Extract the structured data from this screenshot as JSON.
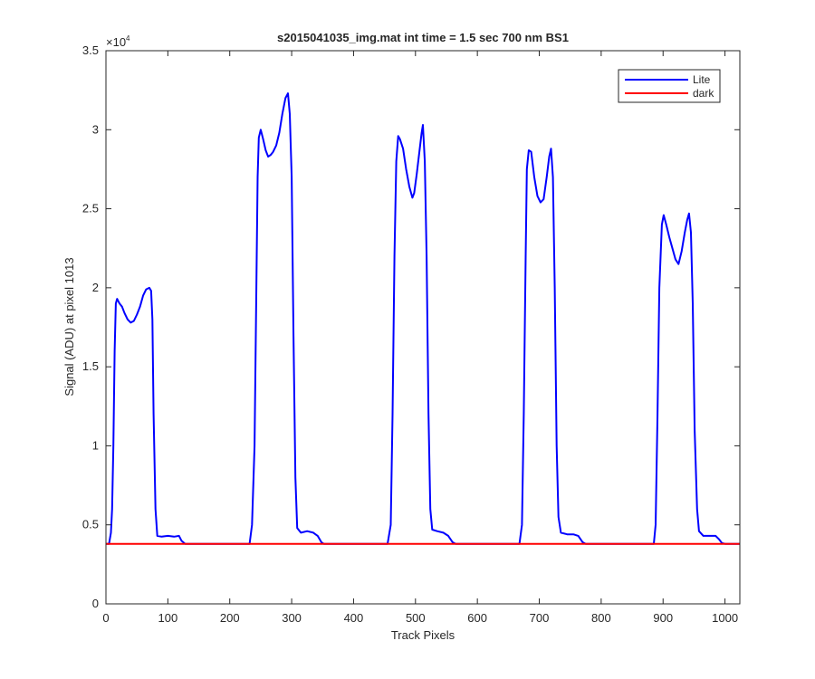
{
  "colors": {
    "lite": "#0000ff",
    "dark": "#ff0000",
    "axes": "#262626",
    "background": "#ffffff"
  },
  "chart_data": {
    "type": "line",
    "title": "s2015041035_img.mat int time = 1.5 sec  700 nm BS1",
    "xlabel": "Track Pixels",
    "ylabel": "Signal (ADU) at pixel 1013",
    "xlim": [
      0,
      1024
    ],
    "ylim": [
      0,
      35000
    ],
    "y_exponent_label": "×10",
    "y_exponent_power": "4",
    "xticks": [
      0,
      100,
      200,
      300,
      400,
      500,
      600,
      700,
      800,
      900,
      1000
    ],
    "xtick_labels": [
      "0",
      "100",
      "200",
      "300",
      "400",
      "500",
      "600",
      "700",
      "800",
      "900",
      "1000"
    ],
    "yticks": [
      0,
      5000,
      10000,
      15000,
      20000,
      25000,
      30000,
      35000
    ],
    "ytick_labels": [
      "0",
      "0.5",
      "1",
      "1.5",
      "2",
      "2.5",
      "3",
      "3.5"
    ],
    "grid": false,
    "legend_position": "top-right",
    "series": [
      {
        "name": "Lite",
        "color": "#0000ff",
        "points": [
          [
            0,
            3800
          ],
          [
            5,
            3800
          ],
          [
            8,
            4500
          ],
          [
            10,
            6000
          ],
          [
            12,
            10000
          ],
          [
            14,
            16000
          ],
          [
            16,
            19000
          ],
          [
            18,
            19300
          ],
          [
            22,
            19000
          ],
          [
            26,
            18800
          ],
          [
            30,
            18400
          ],
          [
            35,
            18000
          ],
          [
            40,
            17800
          ],
          [
            45,
            17900
          ],
          [
            50,
            18300
          ],
          [
            55,
            18800
          ],
          [
            60,
            19500
          ],
          [
            65,
            19900
          ],
          [
            70,
            20000
          ],
          [
            73,
            19800
          ],
          [
            75,
            18000
          ],
          [
            77,
            12000
          ],
          [
            80,
            6000
          ],
          [
            83,
            4300
          ],
          [
            90,
            4250
          ],
          [
            100,
            4300
          ],
          [
            110,
            4250
          ],
          [
            118,
            4300
          ],
          [
            122,
            4000
          ],
          [
            128,
            3800
          ],
          [
            232,
            3800
          ],
          [
            236,
            5000
          ],
          [
            240,
            10000
          ],
          [
            243,
            20000
          ],
          [
            245,
            27000
          ],
          [
            247,
            29500
          ],
          [
            250,
            30000
          ],
          [
            254,
            29400
          ],
          [
            258,
            28700
          ],
          [
            262,
            28300
          ],
          [
            266,
            28400
          ],
          [
            270,
            28600
          ],
          [
            275,
            29000
          ],
          [
            280,
            29800
          ],
          [
            285,
            31000
          ],
          [
            290,
            32000
          ],
          [
            294,
            32300
          ],
          [
            297,
            31000
          ],
          [
            300,
            27000
          ],
          [
            303,
            17000
          ],
          [
            306,
            8000
          ],
          [
            309,
            4800
          ],
          [
            315,
            4500
          ],
          [
            325,
            4600
          ],
          [
            335,
            4500
          ],
          [
            342,
            4300
          ],
          [
            348,
            3900
          ],
          [
            352,
            3800
          ],
          [
            455,
            3800
          ],
          [
            460,
            5000
          ],
          [
            463,
            12000
          ],
          [
            466,
            22000
          ],
          [
            469,
            28000
          ],
          [
            472,
            29600
          ],
          [
            475,
            29400
          ],
          [
            480,
            28800
          ],
          [
            485,
            27500
          ],
          [
            490,
            26400
          ],
          [
            495,
            25700
          ],
          [
            498,
            26000
          ],
          [
            502,
            27200
          ],
          [
            506,
            28500
          ],
          [
            510,
            29800
          ],
          [
            512,
            30300
          ],
          [
            515,
            28000
          ],
          [
            518,
            22000
          ],
          [
            521,
            12000
          ],
          [
            524,
            6000
          ],
          [
            527,
            4700
          ],
          [
            535,
            4600
          ],
          [
            545,
            4500
          ],
          [
            553,
            4300
          ],
          [
            560,
            3900
          ],
          [
            565,
            3800
          ],
          [
            668,
            3800
          ],
          [
            672,
            5000
          ],
          [
            675,
            12000
          ],
          [
            678,
            22000
          ],
          [
            680,
            27500
          ],
          [
            683,
            28700
          ],
          [
            687,
            28600
          ],
          [
            692,
            27000
          ],
          [
            697,
            25800
          ],
          [
            702,
            25400
          ],
          [
            707,
            25600
          ],
          [
            712,
            27000
          ],
          [
            716,
            28300
          ],
          [
            719,
            28800
          ],
          [
            722,
            27000
          ],
          [
            725,
            20000
          ],
          [
            728,
            10000
          ],
          [
            731,
            5500
          ],
          [
            735,
            4500
          ],
          [
            745,
            4400
          ],
          [
            755,
            4400
          ],
          [
            763,
            4300
          ],
          [
            770,
            3900
          ],
          [
            775,
            3800
          ],
          [
            885,
            3800
          ],
          [
            888,
            5000
          ],
          [
            891,
            12000
          ],
          [
            894,
            20000
          ],
          [
            898,
            24000
          ],
          [
            901,
            24600
          ],
          [
            905,
            24000
          ],
          [
            910,
            23200
          ],
          [
            915,
            22500
          ],
          [
            920,
            21800
          ],
          [
            925,
            21500
          ],
          [
            930,
            22300
          ],
          [
            935,
            23500
          ],
          [
            939,
            24300
          ],
          [
            942,
            24700
          ],
          [
            945,
            23500
          ],
          [
            948,
            19000
          ],
          [
            951,
            11000
          ],
          [
            955,
            6000
          ],
          [
            958,
            4600
          ],
          [
            965,
            4300
          ],
          [
            975,
            4300
          ],
          [
            985,
            4300
          ],
          [
            990,
            4100
          ],
          [
            995,
            3850
          ],
          [
            1000,
            3800
          ],
          [
            1024,
            3800
          ]
        ]
      },
      {
        "name": "dark",
        "color": "#ff0000",
        "points": [
          [
            0,
            3800
          ],
          [
            1024,
            3800
          ]
        ]
      }
    ]
  }
}
